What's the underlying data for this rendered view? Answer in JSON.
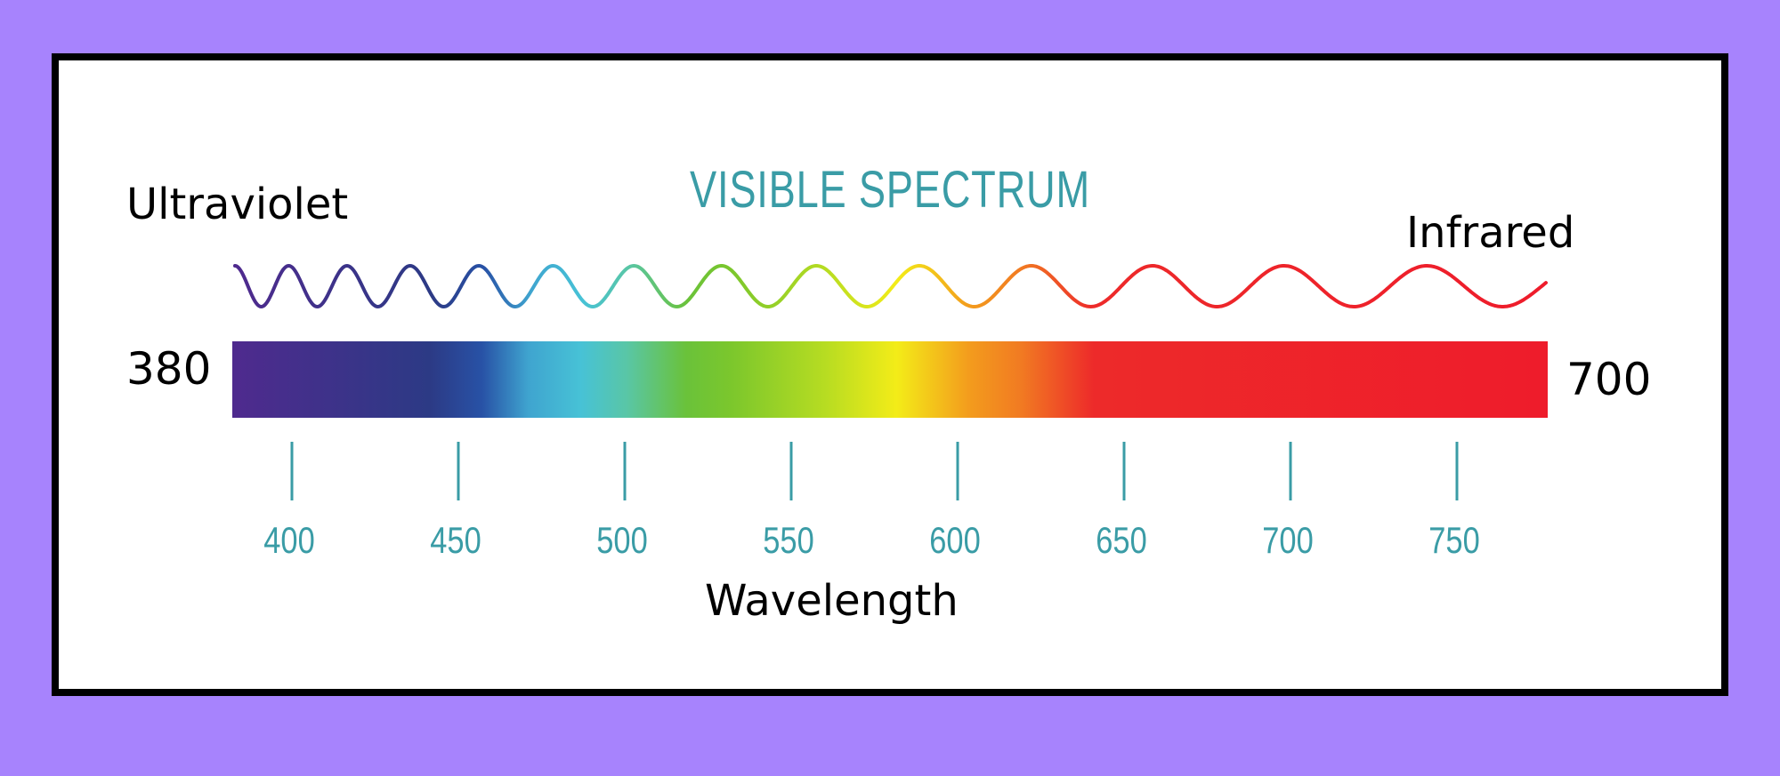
{
  "title": "VISIBLE SPECTRUM",
  "left_label": "Ultraviolet",
  "right_label": "Infrared",
  "range": {
    "min_label": "380",
    "max_label": "700"
  },
  "axis_label": "Wavelength",
  "ticks": [
    "400",
    "450",
    "500",
    "550",
    "600",
    "650",
    "700",
    "750"
  ],
  "colors": {
    "background": "#a783fd",
    "card": "#ffffff",
    "border": "#000000",
    "accent": "#3a9ca6",
    "spectrum_stops": [
      {
        "offset": 0.0,
        "color": "#4f2a8e"
      },
      {
        "offset": 0.15,
        "color": "#2c3a85"
      },
      {
        "offset": 0.19,
        "color": "#2852a6"
      },
      {
        "offset": 0.225,
        "color": "#3fa4cf"
      },
      {
        "offset": 0.265,
        "color": "#47c2d6"
      },
      {
        "offset": 0.3,
        "color": "#59c6a6"
      },
      {
        "offset": 0.345,
        "color": "#6ac23a"
      },
      {
        "offset": 0.38,
        "color": "#7cc72c"
      },
      {
        "offset": 0.45,
        "color": "#b6dc22"
      },
      {
        "offset": 0.505,
        "color": "#f3ec18"
      },
      {
        "offset": 0.56,
        "color": "#f39c1d"
      },
      {
        "offset": 0.6,
        "color": "#f17a22"
      },
      {
        "offset": 0.655,
        "color": "#ed2a2a"
      },
      {
        "offset": 1.0,
        "color": "#ee1c2b"
      }
    ]
  }
}
